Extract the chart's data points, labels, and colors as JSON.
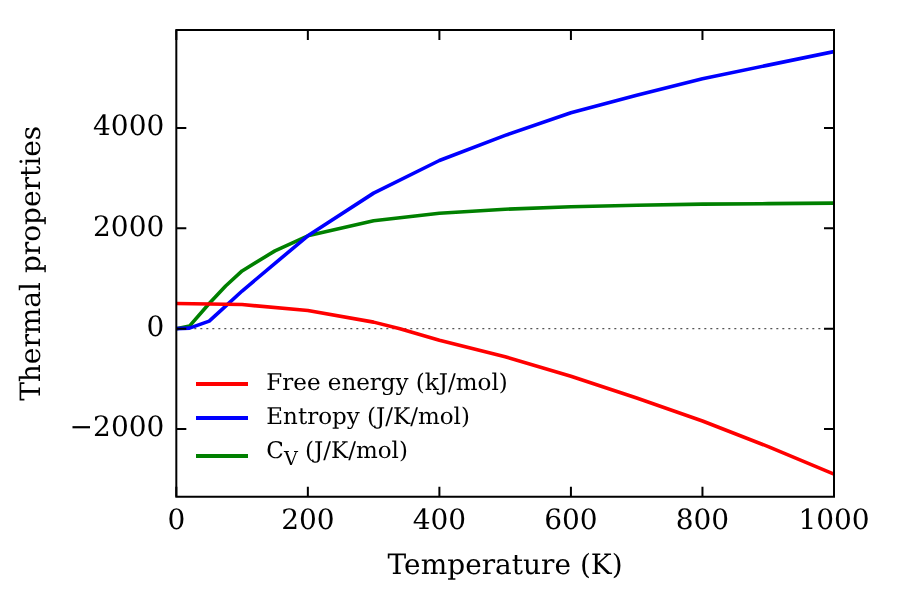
{
  "chart_data": {
    "type": "line",
    "xlabel": "Temperature (K)",
    "ylabel": "Thermal properties",
    "xlim": [
      0,
      1000
    ],
    "xticks": [
      0,
      200,
      400,
      600,
      800,
      1000
    ],
    "ylim": [
      -3350,
      5950
    ],
    "yticks": [
      -2000,
      0,
      2000,
      4000
    ],
    "grid": false,
    "legend": "lower left",
    "marker": "none",
    "line_style": "solid",
    "ref_lines": [
      {
        "axis": "y",
        "value": 0,
        "color": "#555555",
        "line_style": "dotted"
      }
    ],
    "series": [
      {
        "name": "Free energy (kJ/mol)",
        "color": "#ff0000",
        "x": [
          0,
          100,
          200,
          300,
          340,
          400,
          500,
          600,
          700,
          800,
          900,
          1000
        ],
        "values": [
          500,
          480,
          360,
          130,
          0,
          -230,
          -560,
          -950,
          -1380,
          -1840,
          -2350,
          -2900
        ]
      },
      {
        "name": "Entropy (J/K/mol)",
        "color": "#0000ff",
        "x": [
          0,
          20,
          50,
          75,
          100,
          150,
          200,
          300,
          400,
          500,
          600,
          700,
          800,
          900,
          1000
        ],
        "values": [
          0,
          10,
          150,
          450,
          750,
          1300,
          1850,
          2700,
          3350,
          3850,
          4300,
          4650,
          4980,
          5250,
          5520
        ]
      },
      {
        "name": "C$_{V}$ (J/K/mol)",
        "color": "#008000",
        "x": [
          0,
          20,
          50,
          75,
          100,
          150,
          200,
          300,
          400,
          500,
          600,
          700,
          800,
          900,
          1000
        ],
        "values": [
          0,
          50,
          500,
          850,
          1150,
          1550,
          1850,
          2150,
          2300,
          2380,
          2430,
          2460,
          2480,
          2490,
          2500
        ]
      }
    ]
  }
}
